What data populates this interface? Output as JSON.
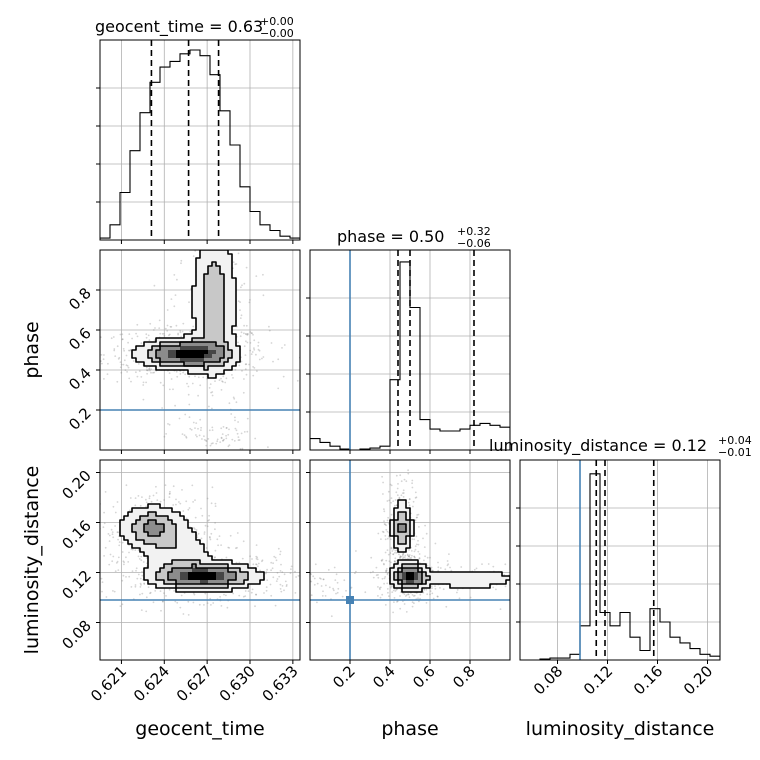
{
  "chart_data": {
    "type": "corner",
    "parameters": [
      "geocent_time",
      "phase",
      "luminosity_distance"
    ],
    "injection": {
      "geocent_time": null,
      "phase": 0.2,
      "luminosity_distance": 0.098,
      "color": "#4682b4"
    },
    "titles": [
      {
        "param": "geocent_time",
        "name": "geocent_time = 0.63",
        "sup": "+0.00",
        "sub": "−0.00"
      },
      {
        "param": "phase",
        "name": "phase = 0.50",
        "sup": "+0.32",
        "sub": "−0.06"
      },
      {
        "param": "luminosity_distance",
        "name": "luminosity_distance = 0.12",
        "sup": "+0.04",
        "sub": "−0.01"
      }
    ],
    "axes": {
      "geocent_time": {
        "range": [
          0.6195,
          0.6335
        ],
        "ticks": [
          0.621,
          0.624,
          0.627,
          0.63,
          0.633
        ],
        "tick_labels": [
          "0.621",
          "0.624",
          "0.627",
          "0.630",
          "0.633"
        ]
      },
      "phase": {
        "range": [
          0.0,
          1.0
        ],
        "ticks_y": [
          0.2,
          0.4,
          0.6,
          0.8
        ],
        "ticks_x": [
          0.2,
          0.4,
          0.6,
          0.8
        ],
        "tick_labels": [
          "0.2",
          "0.4",
          "0.6",
          "0.8"
        ]
      },
      "luminosity_distance": {
        "range": [
          0.05,
          0.21
        ],
        "ticks": [
          0.08,
          0.12,
          0.16,
          0.2
        ],
        "tick_labels": [
          "0.08",
          "0.12",
          "0.16",
          "0.20"
        ]
      }
    },
    "histograms": {
      "geocent_time": {
        "edges": [
          0.6195,
          0.6202,
          0.6209,
          0.6216,
          0.6223,
          0.623,
          0.6237,
          0.6244,
          0.6251,
          0.6258,
          0.6265,
          0.6272,
          0.6279,
          0.6286,
          0.6293,
          0.63,
          0.6307,
          0.6314,
          0.6321,
          0.6328,
          0.6335
        ],
        "counts": [
          0.01,
          0.08,
          0.25,
          0.47,
          0.67,
          0.83,
          0.91,
          0.94,
          0.98,
          1.0,
          0.97,
          0.87,
          0.68,
          0.5,
          0.28,
          0.15,
          0.08,
          0.05,
          0.02,
          0.01
        ],
        "quantiles": [
          0.6231,
          0.6257,
          0.6278
        ]
      },
      "phase": {
        "edges": [
          0.0,
          0.05,
          0.1,
          0.15,
          0.2,
          0.25,
          0.3,
          0.35,
          0.4,
          0.45,
          0.5,
          0.55,
          0.6,
          0.65,
          0.7,
          0.75,
          0.8,
          0.85,
          0.9,
          0.95,
          1.0
        ],
        "counts": [
          0.06,
          0.04,
          0.02,
          0.005,
          0.0,
          0.005,
          0.01,
          0.02,
          0.37,
          0.99,
          0.75,
          0.16,
          0.11,
          0.1,
          0.1,
          0.11,
          0.13,
          0.14,
          0.13,
          0.12
        ],
        "quantiles": [
          0.44,
          0.5,
          0.82
        ]
      },
      "luminosity_distance": {
        "edges": [
          0.05,
          0.058,
          0.066,
          0.074,
          0.082,
          0.09,
          0.098,
          0.106,
          0.114,
          0.122,
          0.13,
          0.138,
          0.146,
          0.154,
          0.162,
          0.17,
          0.178,
          0.186,
          0.194,
          0.202,
          0.21
        ],
        "counts": [
          0.0,
          0.0,
          0.005,
          0.01,
          0.01,
          0.03,
          0.18,
          0.98,
          0.25,
          0.18,
          0.25,
          0.12,
          0.05,
          0.27,
          0.2,
          0.12,
          0.09,
          0.06,
          0.03,
          0.02
        ],
        "quantiles": [
          0.111,
          0.118,
          0.157
        ]
      }
    },
    "density_2d": [
      {
        "x": "geocent_time",
        "y": "phase",
        "blobs": [
          {
            "x": 0.6255,
            "y": 0.48,
            "sx": 0.0018,
            "sy": 0.042,
            "w": 1.0
          },
          {
            "x": 0.6275,
            "y": 0.74,
            "sx": 0.0009,
            "sy": 0.22,
            "w": 0.45
          },
          {
            "x": 0.6276,
            "y": 0.06,
            "sx": 0.001,
            "sy": 0.03,
            "w": 0.12
          }
        ]
      },
      {
        "x": "geocent_time",
        "y": "luminosity_distance",
        "blobs": [
          {
            "x": 0.6268,
            "y": 0.117,
            "sx": 0.002,
            "sy": 0.006,
            "w": 1.0
          },
          {
            "x": 0.6232,
            "y": 0.156,
            "sx": 0.0013,
            "sy": 0.01,
            "w": 0.55
          },
          {
            "x": 0.625,
            "y": 0.135,
            "sx": 0.0015,
            "sy": 0.012,
            "w": 0.25
          }
        ]
      },
      {
        "x": "phase",
        "y": "luminosity_distance",
        "blobs": [
          {
            "x": 0.5,
            "y": 0.117,
            "sx": 0.05,
            "sy": 0.006,
            "w": 1.0
          },
          {
            "x": 0.46,
            "y": 0.156,
            "sx": 0.03,
            "sy": 0.012,
            "w": 0.55
          },
          {
            "x": 0.8,
            "y": 0.115,
            "sx": 0.15,
            "sy": 0.005,
            "w": 0.3
          },
          {
            "x": 0.05,
            "y": 0.11,
            "sx": 0.06,
            "sy": 0.005,
            "w": 0.12
          }
        ]
      }
    ],
    "grid": true
  }
}
